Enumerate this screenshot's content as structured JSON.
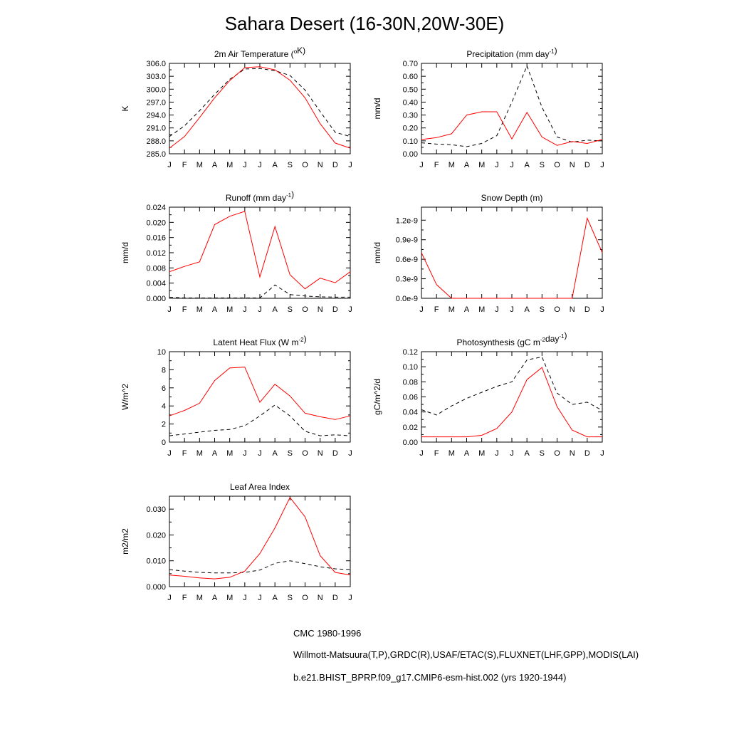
{
  "page": {
    "title": "Sahara Desert (16-30N,20W-30E)"
  },
  "months": [
    "J",
    "F",
    "M",
    "A",
    "M",
    "J",
    "J",
    "A",
    "S",
    "O",
    "N",
    "D",
    "J"
  ],
  "legend": [
    {
      "label": "CMC 1980-1996",
      "style": "dashed-black"
    },
    {
      "label": "Willmott-Matsuura(T,P),GRDC(R),USAF/ETAC(S),FLUXNET(LHF,GPP),MODIS(LAI)",
      "style": "dashed-mixed"
    },
    {
      "label": "b.e21.BHIST_BPRP.f09_g17.CMIP6-esm-hist.002 (yrs 1920-1944)",
      "style": "solid-red"
    }
  ],
  "colors": {
    "model": "#ff0000",
    "obs": "#000000"
  },
  "chart_data": [
    {
      "type": "line",
      "title": "2m Air Temperature (",
      "title_sup": "o",
      "title_after": "K)",
      "ylabel": "K",
      "ylim": [
        285,
        306
      ],
      "yticks": [
        285,
        288,
        291,
        294,
        297,
        300,
        303,
        306
      ],
      "ytick_labels": [
        "285.0",
        "288.0",
        "291.0",
        "294.0",
        "297.0",
        "300.0",
        "303.0",
        "306.0"
      ],
      "x": [
        "J",
        "F",
        "M",
        "A",
        "M",
        "J",
        "J",
        "A",
        "S",
        "O",
        "N",
        "D",
        "J"
      ],
      "series": [
        {
          "style": "dashed",
          "values": [
            289.0,
            291.5,
            295.0,
            298.8,
            302.3,
            304.7,
            304.8,
            304.3,
            303.2,
            299.8,
            294.8,
            290.0,
            289.0
          ]
        },
        {
          "style": "solid",
          "values": [
            286.3,
            289.0,
            293.4,
            298.0,
            302.0,
            305.0,
            305.2,
            304.5,
            302.1,
            298.0,
            292.0,
            287.5,
            286.3
          ]
        }
      ]
    },
    {
      "type": "line",
      "title": "Precipitation (mm day",
      "title_sup": "-1",
      "title_after": ")",
      "ylabel": "mm/d",
      "ylim": [
        0,
        0.7
      ],
      "yticks": [
        0,
        0.1,
        0.2,
        0.3,
        0.4,
        0.5,
        0.6,
        0.7
      ],
      "ytick_labels": [
        "0.00",
        "0.10",
        "0.20",
        "0.30",
        "0.40",
        "0.50",
        "0.60",
        "0.70"
      ],
      "x": [
        "J",
        "F",
        "M",
        "A",
        "M",
        "J",
        "J",
        "A",
        "S",
        "O",
        "N",
        "D",
        "J"
      ],
      "series": [
        {
          "style": "dashed",
          "values": [
            0.085,
            0.075,
            0.07,
            0.055,
            0.08,
            0.14,
            0.4,
            0.68,
            0.36,
            0.13,
            0.09,
            0.105,
            0.1
          ]
        },
        {
          "style": "solid",
          "values": [
            0.11,
            0.125,
            0.155,
            0.3,
            0.325,
            0.325,
            0.115,
            0.32,
            0.13,
            0.065,
            0.095,
            0.08,
            0.11
          ]
        }
      ]
    },
    {
      "type": "line",
      "title": "Runoff (mm day",
      "title_sup": "-1",
      "title_after": ")",
      "ylabel": "mm/d",
      "ylim": [
        0,
        0.024
      ],
      "yticks": [
        0,
        0.004,
        0.008,
        0.012,
        0.016,
        0.02,
        0.024
      ],
      "ytick_labels": [
        "0.000",
        "0.004",
        "0.008",
        "0.012",
        "0.016",
        "0.020",
        "0.024"
      ],
      "x": [
        "J",
        "F",
        "M",
        "A",
        "M",
        "J",
        "J",
        "A",
        "S",
        "O",
        "N",
        "D",
        "J"
      ],
      "series": [
        {
          "style": "dashed",
          "values": [
            0.0003,
            0.0001,
            0.0001,
            0.0001,
            0.0001,
            0.0001,
            0.0001,
            0.0035,
            0.001,
            0.0006,
            0.0004,
            0.0003,
            0.0003
          ]
        },
        {
          "style": "solid",
          "values": [
            0.007,
            0.0084,
            0.0096,
            0.0194,
            0.0216,
            0.0229,
            0.0056,
            0.0189,
            0.0062,
            0.0025,
            0.0053,
            0.0041,
            0.007
          ]
        }
      ]
    },
    {
      "type": "line",
      "title": "Snow Depth (m)",
      "title_sup": "",
      "title_after": "",
      "ylabel": "mm/d",
      "ylim": [
        0,
        1.4e-09
      ],
      "yticks": [
        0,
        3e-10,
        6e-10,
        9e-10,
        1.2e-09
      ],
      "ytick_labels": [
        "0.0e-9",
        "0.3e-9",
        "0.6e-9",
        "0.9e-9",
        "1.2e-9"
      ],
      "x": [
        "J",
        "F",
        "M",
        "A",
        "M",
        "J",
        "J",
        "A",
        "S",
        "O",
        "N",
        "D",
        "J"
      ],
      "series": [
        {
          "style": "dashed",
          "values": [
            0,
            0,
            0,
            0,
            0,
            0,
            0,
            0,
            0,
            0,
            0,
            0,
            0
          ]
        },
        {
          "style": "solid",
          "values": [
            7e-10,
            2.1e-10,
            0,
            0,
            0,
            0,
            0,
            0,
            0,
            0,
            0,
            1.23e-09,
            7e-10
          ]
        }
      ]
    },
    {
      "type": "line",
      "title": "Latent Heat Flux (W m",
      "title_sup": "-2",
      "title_after": ")",
      "ylabel": "W/m^2",
      "ylim": [
        0,
        10
      ],
      "yticks": [
        0,
        2,
        4,
        6,
        8,
        10
      ],
      "ytick_labels": [
        "0",
        "2",
        "4",
        "6",
        "8",
        "10"
      ],
      "x": [
        "J",
        "F",
        "M",
        "A",
        "M",
        "J",
        "J",
        "A",
        "S",
        "O",
        "N",
        "D",
        "J"
      ],
      "series": [
        {
          "style": "dashed",
          "values": [
            0.7,
            0.9,
            1.1,
            1.3,
            1.4,
            1.8,
            2.9,
            4.1,
            2.9,
            1.2,
            0.7,
            0.8,
            0.7
          ]
        },
        {
          "style": "solid",
          "values": [
            2.9,
            3.5,
            4.3,
            6.8,
            8.2,
            8.3,
            4.4,
            6.4,
            5.1,
            3.2,
            2.8,
            2.5,
            2.9
          ]
        }
      ]
    },
    {
      "type": "line",
      "title": "Photosynthesis (gC m",
      "title_sup": "-2",
      "title_after": "day",
      "title_sup2": "-1",
      "title_after2": ")",
      "ylabel": "gC/m^2/d",
      "ylim": [
        0,
        0.12
      ],
      "yticks": [
        0,
        0.02,
        0.04,
        0.06,
        0.08,
        0.1,
        0.12
      ],
      "ytick_labels": [
        "0.00",
        "0.02",
        "0.04",
        "0.06",
        "0.08",
        "0.10",
        "0.12"
      ],
      "x": [
        "J",
        "F",
        "M",
        "A",
        "M",
        "J",
        "J",
        "A",
        "S",
        "O",
        "N",
        "D",
        "J"
      ],
      "series": [
        {
          "style": "dashed",
          "values": [
            0.043,
            0.036,
            0.048,
            0.058,
            0.066,
            0.074,
            0.08,
            0.109,
            0.113,
            0.065,
            0.05,
            0.053,
            0.042
          ]
        },
        {
          "style": "solid",
          "values": [
            0.007,
            0.007,
            0.007,
            0.007,
            0.009,
            0.018,
            0.04,
            0.083,
            0.099,
            0.047,
            0.016,
            0.007,
            0.007
          ]
        }
      ]
    },
    {
      "type": "line",
      "title": "Leaf Area Index",
      "title_sup": "",
      "title_after": "",
      "ylabel": "m2/m2",
      "ylim": [
        0,
        0.035
      ],
      "yticks": [
        0,
        0.01,
        0.02,
        0.03
      ],
      "ytick_labels": [
        "0.000",
        "0.010",
        "0.020",
        "0.030"
      ],
      "x": [
        "J",
        "F",
        "M",
        "A",
        "M",
        "J",
        "J",
        "A",
        "S",
        "O",
        "N",
        "D",
        "J"
      ],
      "series": [
        {
          "style": "dashed",
          "values": [
            0.0066,
            0.006,
            0.0055,
            0.0053,
            0.0053,
            0.0055,
            0.0064,
            0.009,
            0.01,
            0.0089,
            0.0077,
            0.0069,
            0.0066
          ]
        },
        {
          "style": "solid",
          "values": [
            0.0045,
            0.004,
            0.0034,
            0.003,
            0.0036,
            0.006,
            0.0128,
            0.0227,
            0.0345,
            0.027,
            0.012,
            0.0055,
            0.0045
          ]
        }
      ]
    }
  ]
}
